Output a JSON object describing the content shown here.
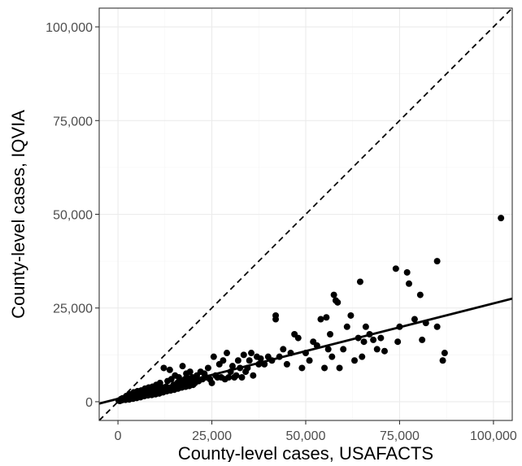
{
  "chart_data": {
    "type": "scatter",
    "title": "",
    "xlabel": "County-level cases, USAFACTS",
    "ylabel": "County-level cases, IQVIA",
    "xlim": [
      -5000,
      105000
    ],
    "ylim": [
      -5000,
      105000
    ],
    "x_ticks": [
      0,
      25000,
      50000,
      75000,
      100000
    ],
    "x_tick_labels": [
      "0",
      "25,000",
      "50,000",
      "75,000",
      "100,000"
    ],
    "y_ticks": [
      0,
      25000,
      50000,
      75000,
      100000
    ],
    "y_tick_labels": [
      "0",
      "25,000",
      "50,000",
      "75,000",
      "100,000"
    ],
    "grid": true,
    "legend": "none",
    "reference_line": {
      "style": "dashed",
      "slope": 1,
      "intercept": 0
    },
    "fit_line": {
      "style": "solid",
      "x": [
        -5000,
        105000
      ],
      "y": [
        -500,
        27500
      ]
    },
    "points": [
      [
        200,
        300
      ],
      [
        500,
        200
      ],
      [
        800,
        700
      ],
      [
        1000,
        400
      ],
      [
        1200,
        900
      ],
      [
        1500,
        600
      ],
      [
        1800,
        1000
      ],
      [
        2000,
        500
      ],
      [
        2200,
        1500
      ],
      [
        2500,
        800
      ],
      [
        2800,
        1200
      ],
      [
        3000,
        600
      ],
      [
        3200,
        2000
      ],
      [
        3500,
        1000
      ],
      [
        3800,
        1500
      ],
      [
        4000,
        800
      ],
      [
        4200,
        2500
      ],
      [
        4500,
        1200
      ],
      [
        4800,
        1800
      ],
      [
        5000,
        1000
      ],
      [
        5200,
        2800
      ],
      [
        5500,
        1500
      ],
      [
        5800,
        2200
      ],
      [
        6000,
        1200
      ],
      [
        6200,
        3000
      ],
      [
        6500,
        1800
      ],
      [
        6800,
        2500
      ],
      [
        7000,
        1500
      ],
      [
        7200,
        3500
      ],
      [
        7500,
        2000
      ],
      [
        7800,
        2800
      ],
      [
        8000,
        1700
      ],
      [
        8200,
        3800
      ],
      [
        8500,
        2200
      ],
      [
        8800,
        3000
      ],
      [
        9000,
        1800
      ],
      [
        9200,
        4000
      ],
      [
        9500,
        2500
      ],
      [
        9800,
        3200
      ],
      [
        10000,
        2000
      ],
      [
        10200,
        4500
      ],
      [
        10500,
        2800
      ],
      [
        10800,
        3500
      ],
      [
        11000,
        2200
      ],
      [
        11200,
        5000
      ],
      [
        11500,
        3000
      ],
      [
        11800,
        3800
      ],
      [
        12000,
        2500
      ],
      [
        12200,
        9000
      ],
      [
        12500,
        3200
      ],
      [
        12800,
        4000
      ],
      [
        13000,
        2800
      ],
      [
        13200,
        5500
      ],
      [
        13500,
        3500
      ],
      [
        13800,
        8500
      ],
      [
        14000,
        3000
      ],
      [
        14200,
        6000
      ],
      [
        14500,
        3800
      ],
      [
        14800,
        4500
      ],
      [
        15000,
        3200
      ],
      [
        15200,
        7000
      ],
      [
        15500,
        4000
      ],
      [
        15800,
        5000
      ],
      [
        16000,
        3500
      ],
      [
        16200,
        6500
      ],
      [
        16500,
        4200
      ],
      [
        16800,
        5500
      ],
      [
        17000,
        3800
      ],
      [
        17200,
        9500
      ],
      [
        17500,
        4500
      ],
      [
        17800,
        6000
      ],
      [
        18000,
        4000
      ],
      [
        18200,
        7500
      ],
      [
        18500,
        4800
      ],
      [
        18800,
        6200
      ],
      [
        19000,
        4200
      ],
      [
        19200,
        8000
      ],
      [
        19500,
        5000
      ],
      [
        19800,
        6500
      ],
      [
        20000,
        4500
      ],
      [
        20500,
        5000
      ],
      [
        21000,
        7000
      ],
      [
        21500,
        5500
      ],
      [
        22000,
        8000
      ],
      [
        22500,
        6000
      ],
      [
        23000,
        7500
      ],
      [
        23500,
        6500
      ],
      [
        24000,
        9000
      ],
      [
        24500,
        6000
      ],
      [
        25000,
        5000
      ],
      [
        25500,
        12000
      ],
      [
        26000,
        7000
      ],
      [
        26500,
        6500
      ],
      [
        27000,
        10000
      ],
      [
        27500,
        6500
      ],
      [
        28000,
        11000
      ],
      [
        28500,
        6000
      ],
      [
        29000,
        13000
      ],
      [
        29500,
        6500
      ],
      [
        30000,
        8000
      ],
      [
        30500,
        9500
      ],
      [
        31000,
        6500
      ],
      [
        31500,
        7000
      ],
      [
        32000,
        11000
      ],
      [
        32500,
        9000
      ],
      [
        33000,
        6500
      ],
      [
        33500,
        12500
      ],
      [
        34000,
        8000
      ],
      [
        34500,
        9000
      ],
      [
        35000,
        11000
      ],
      [
        35500,
        13000
      ],
      [
        36000,
        7000
      ],
      [
        37000,
        12000
      ],
      [
        37500,
        10000
      ],
      [
        38000,
        11500
      ],
      [
        39000,
        10000
      ],
      [
        40000,
        12000
      ],
      [
        41000,
        11000
      ],
      [
        42000,
        23000
      ],
      [
        42000,
        22000
      ],
      [
        43000,
        12000
      ],
      [
        44000,
        14000
      ],
      [
        45000,
        10000
      ],
      [
        46000,
        13000
      ],
      [
        47000,
        18000
      ],
      [
        48000,
        17000
      ],
      [
        49000,
        9000
      ],
      [
        50000,
        13000
      ],
      [
        51000,
        11000
      ],
      [
        52000,
        16000
      ],
      [
        53000,
        15000
      ],
      [
        54000,
        22000
      ],
      [
        55000,
        9000
      ],
      [
        55500,
        22500
      ],
      [
        56000,
        14000
      ],
      [
        56500,
        18000
      ],
      [
        57000,
        12000
      ],
      [
        57500,
        28500
      ],
      [
        58000,
        27000
      ],
      [
        58500,
        26500
      ],
      [
        59000,
        9000
      ],
      [
        60000,
        14000
      ],
      [
        61000,
        20000
      ],
      [
        62000,
        23000
      ],
      [
        63000,
        11000
      ],
      [
        64000,
        17000
      ],
      [
        64500,
        32000
      ],
      [
        65000,
        12000
      ],
      [
        65500,
        16000
      ],
      [
        66000,
        20000
      ],
      [
        67000,
        18000
      ],
      [
        68000,
        16500
      ],
      [
        69000,
        14000
      ],
      [
        70000,
        17000
      ],
      [
        71000,
        13500
      ],
      [
        74000,
        35500
      ],
      [
        74500,
        16000
      ],
      [
        75000,
        20000
      ],
      [
        77000,
        34500
      ],
      [
        77500,
        31500
      ],
      [
        79000,
        22000
      ],
      [
        80500,
        28500
      ],
      [
        81000,
        16500
      ],
      [
        82000,
        21000
      ],
      [
        85000,
        37500
      ],
      [
        85000,
        20000
      ],
      [
        86500,
        11000
      ],
      [
        87000,
        13000
      ],
      [
        102000,
        49000
      ]
    ]
  }
}
